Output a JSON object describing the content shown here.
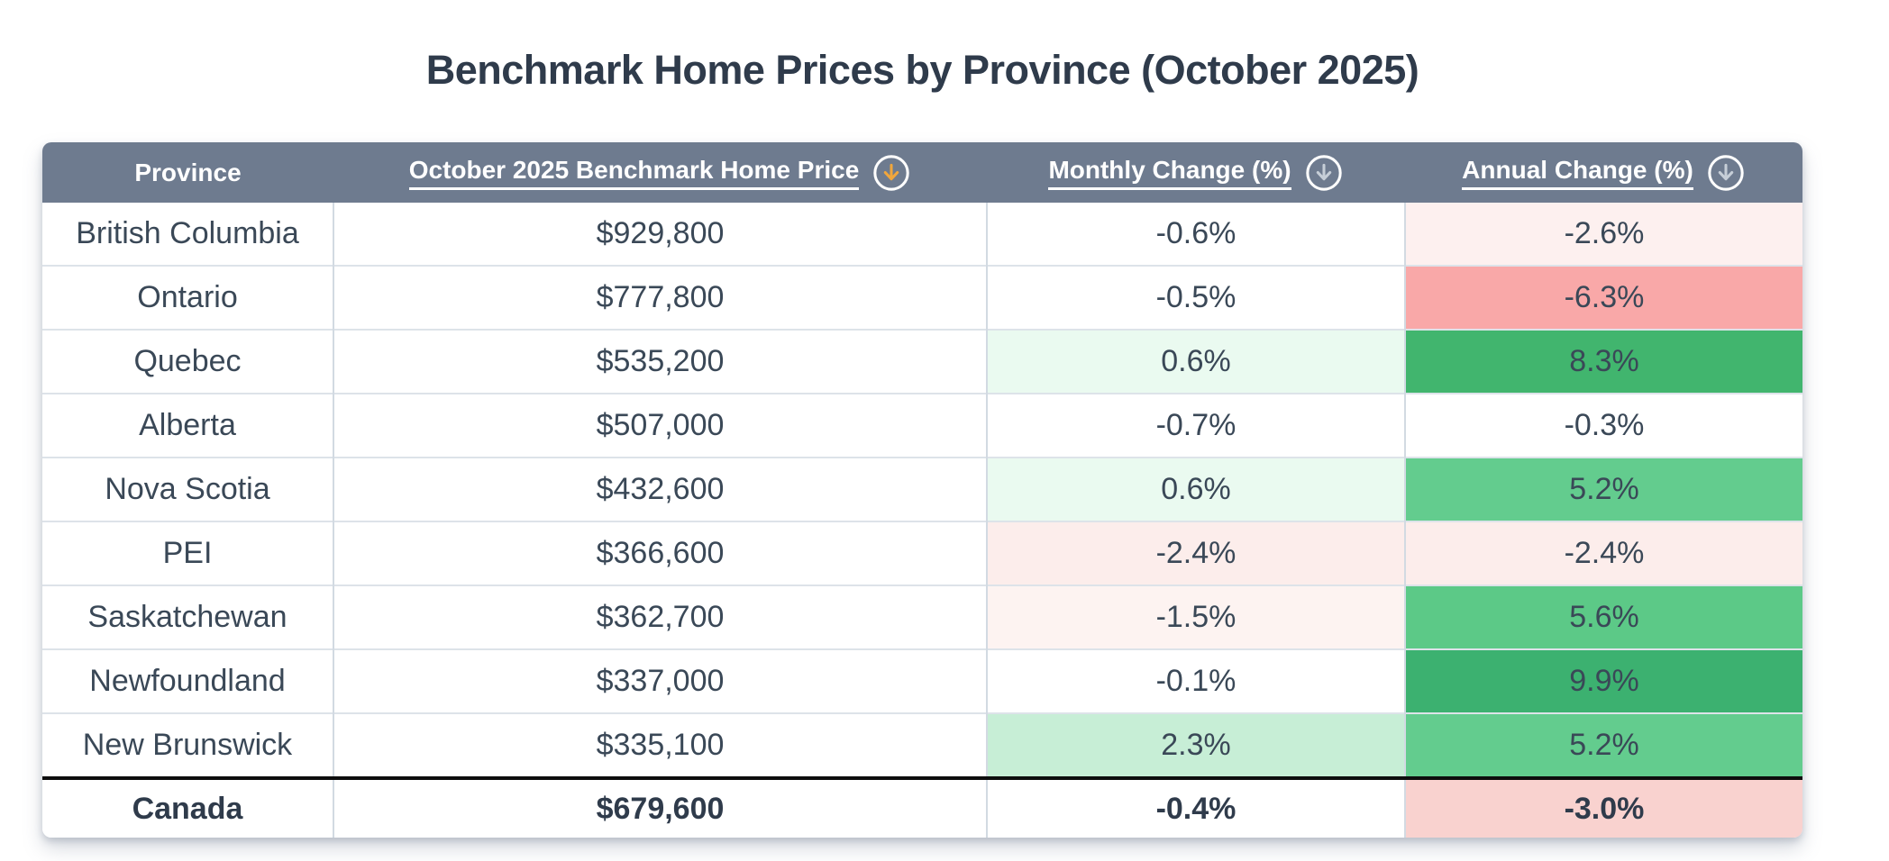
{
  "page": {
    "title": "Benchmark Home Prices by Province (October 2025)"
  },
  "colors": {
    "header_bg": "#6e7b8f",
    "header_text": "#ffffff",
    "title_text": "#2f3b4b",
    "body_text": "#3a4857",
    "footer_divider": "#0d0d0d",
    "active_sort_arrow": "#f0a63c",
    "inactive_sort_arrow": "#c6ced7",
    "negative_strong": "#f9a8a8",
    "positive_strong": "#3cb170"
  },
  "table": {
    "columns": [
      {
        "label": "Province",
        "sortable": false,
        "arrow_color": null
      },
      {
        "label": "October 2025 Benchmark Home Price",
        "sortable": true,
        "icon": "circle-down-arrow",
        "arrow_color": "#f0a63c",
        "sort_active": true
      },
      {
        "label": "Monthly Change (%)",
        "sortable": true,
        "icon": "circle-down-arrow",
        "arrow_color": "#c6ced7",
        "sort_active": false
      },
      {
        "label": "Annual Change (%)",
        "sortable": true,
        "icon": "circle-down-arrow",
        "arrow_color": "#c6ced7",
        "sort_active": false
      }
    ],
    "rows": [
      {
        "province": "British Columbia",
        "price": "$929,800",
        "monthly": "-0.6%",
        "annual": "-2.6%",
        "monthly_bg": "#ffffff",
        "annual_bg": "#fdf0ef"
      },
      {
        "province": "Ontario",
        "price": "$777,800",
        "monthly": "-0.5%",
        "annual": "-6.3%",
        "monthly_bg": "#ffffff",
        "annual_bg": "#f9a8a8"
      },
      {
        "province": "Quebec",
        "price": "$535,200",
        "monthly": "0.6%",
        "annual": "8.3%",
        "monthly_bg": "#eafaf0",
        "annual_bg": "#41b56e"
      },
      {
        "province": "Alberta",
        "price": "$507,000",
        "monthly": "-0.7%",
        "annual": "-0.3%",
        "monthly_bg": "#ffffff",
        "annual_bg": "#ffffff"
      },
      {
        "province": "Nova Scotia",
        "price": "$432,600",
        "monthly": "0.6%",
        "annual": "5.2%",
        "monthly_bg": "#eafaf0",
        "annual_bg": "#63cc8e"
      },
      {
        "province": "PEI",
        "price": "$366,600",
        "monthly": "-2.4%",
        "annual": "-2.4%",
        "monthly_bg": "#fcedeb",
        "annual_bg": "#fcedeb"
      },
      {
        "province": "Saskatchewan",
        "price": "$362,700",
        "monthly": "-1.5%",
        "annual": "5.6%",
        "monthly_bg": "#fdf3f1",
        "annual_bg": "#5cc987"
      },
      {
        "province": "Newfoundland",
        "price": "$337,000",
        "monthly": "-0.1%",
        "annual": "9.9%",
        "monthly_bg": "#ffffff",
        "annual_bg": "#3cb170"
      },
      {
        "province": "New Brunswick",
        "price": "$335,100",
        "monthly": "2.3%",
        "annual": "5.2%",
        "monthly_bg": "#c7eed6",
        "annual_bg": "#63cc8e"
      }
    ],
    "footer": {
      "province": "Canada",
      "price": "$679,600",
      "monthly": "-0.4%",
      "annual": "-3.0%",
      "monthly_bg": "#ffffff",
      "annual_bg": "#f9d2cf"
    }
  }
}
